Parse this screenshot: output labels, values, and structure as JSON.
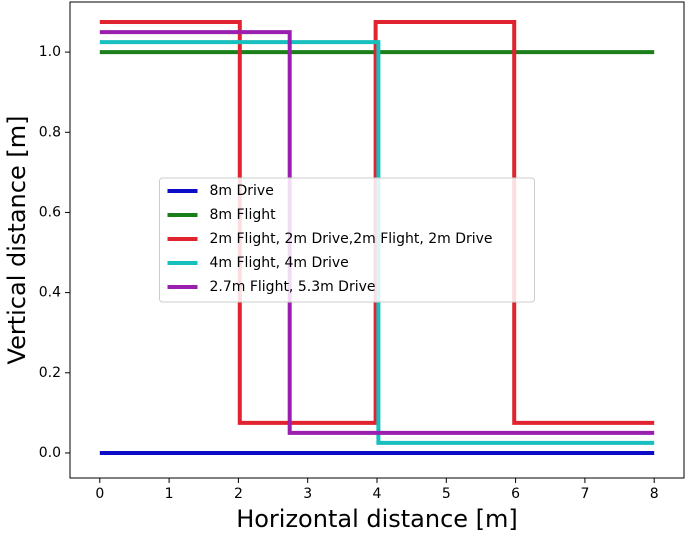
{
  "chart_data": {
    "type": "line",
    "xlabel": "Horizontal distance [m]",
    "ylabel": "Vertical distance [m]",
    "xlim": [
      -0.43,
      8.43
    ],
    "ylim": [
      -0.0625,
      1.125
    ],
    "xticks": [
      0,
      1,
      2,
      3,
      4,
      5,
      6,
      7,
      8
    ],
    "yticks": [
      {
        "value": 0,
        "label": "0.0"
      },
      {
        "value": 0.2,
        "label": "0.2"
      },
      {
        "value": 0.4,
        "label": "0.4"
      },
      {
        "value": 0.6,
        "label": "0.6"
      },
      {
        "value": 0.8,
        "label": "0.8"
      },
      {
        "value": 1,
        "label": "1.0"
      }
    ],
    "legend": "center",
    "series": [
      {
        "name": "8m Drive",
        "color": "#0b0bc8",
        "x": [
          0,
          8
        ],
        "values": [
          0,
          0
        ]
      },
      {
        "name": "8m Flight",
        "color": "#1a7f1a",
        "x": [
          0,
          8
        ],
        "values": [
          1,
          1
        ]
      },
      {
        "name": "2m Flight, 2m Drive,2m Flight, 2m Drive",
        "color": "#e0232e",
        "x": [
          0,
          2.02,
          2.02,
          3.98,
          3.98,
          5.98,
          5.98,
          8
        ],
        "values": [
          1.075,
          1.075,
          0.075,
          0.075,
          1.075,
          1.075,
          0.075,
          0.075
        ]
      },
      {
        "name": "4m Flight, 4m Drive",
        "color": "#17bfbf",
        "x": [
          0,
          4.02,
          4.02,
          8
        ],
        "values": [
          1.025,
          1.025,
          0.025,
          0.025
        ]
      },
      {
        "name": "2.7m Flight, 5.3m Drive",
        "color": "#9b1fae",
        "x": [
          0,
          2.74,
          2.74,
          8
        ],
        "values": [
          1.05,
          1.05,
          0.05,
          0.05
        ]
      }
    ]
  }
}
